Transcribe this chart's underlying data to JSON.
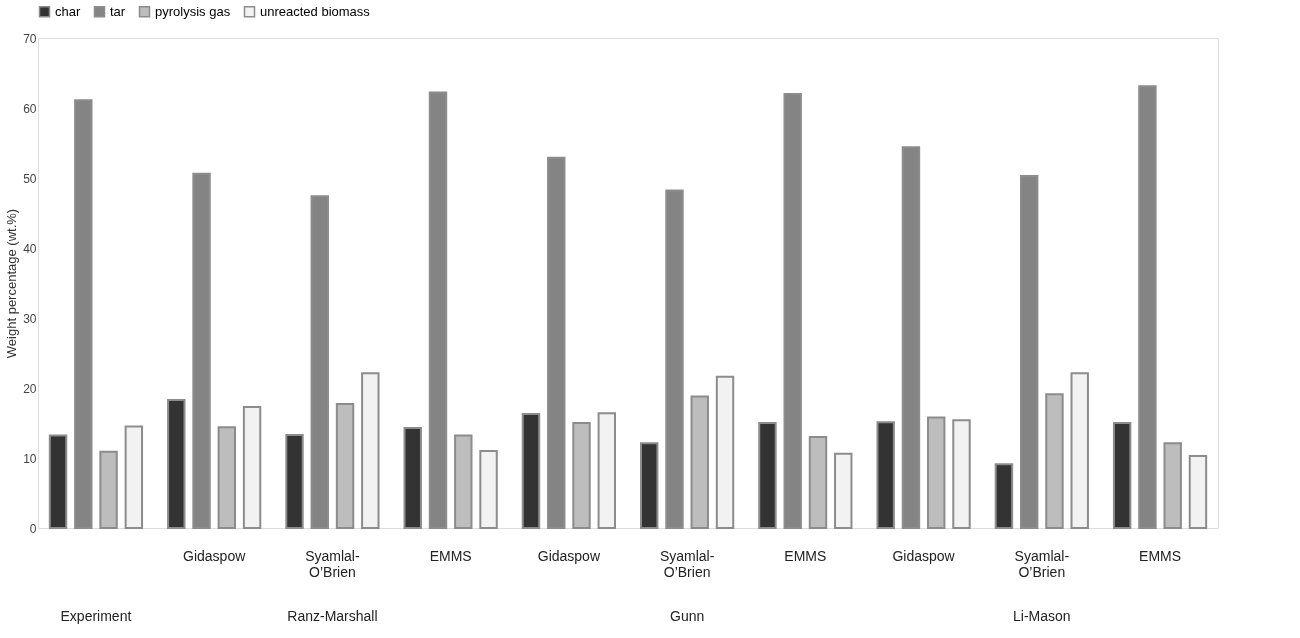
{
  "chart_data": {
    "type": "bar",
    "ylabel": "Weight percentage (wt.%)",
    "categories": [
      null,
      "Gidaspow",
      "Syamlal-O’Brien",
      "EMMS",
      "Gidaspow",
      "Syamlal-O’Brien",
      "EMMS",
      "Gidaspow",
      "Syamlal-O’Brien",
      "EMMS"
    ],
    "series": [
      {
        "name": "char",
        "color": "#333333",
        "values": [
          13.2,
          18.3,
          13.3,
          14.3,
          16.3,
          12.1,
          15.0,
          15.1,
          9.1,
          15.0
        ]
      },
      {
        "name": "tar",
        "color": "#848484",
        "values": [
          61.1,
          50.6,
          47.4,
          62.2,
          52.9,
          48.2,
          62.0,
          54.4,
          50.3,
          63.1
        ]
      },
      {
        "name": "pyrolysis gas",
        "color": "#bdbdbd",
        "values": [
          10.9,
          14.4,
          17.7,
          13.2,
          15.0,
          18.8,
          13.0,
          15.8,
          19.1,
          12.1
        ]
      },
      {
        "name": "unreacted biomass",
        "color": "#f2f2f2",
        "values": [
          14.5,
          17.3,
          22.1,
          11.0,
          16.4,
          21.6,
          10.6,
          15.4,
          22.1,
          10.3
        ]
      }
    ],
    "annotations": [
      "Experiment",
      "Ranz-Marshall",
      "Gunn",
      "Li-Mason"
    ],
    "ylim": [
      0,
      70
    ],
    "yticks": [
      0,
      10,
      20,
      30,
      40,
      50,
      60,
      70
    ],
    "grid": false,
    "legend": "top"
  }
}
